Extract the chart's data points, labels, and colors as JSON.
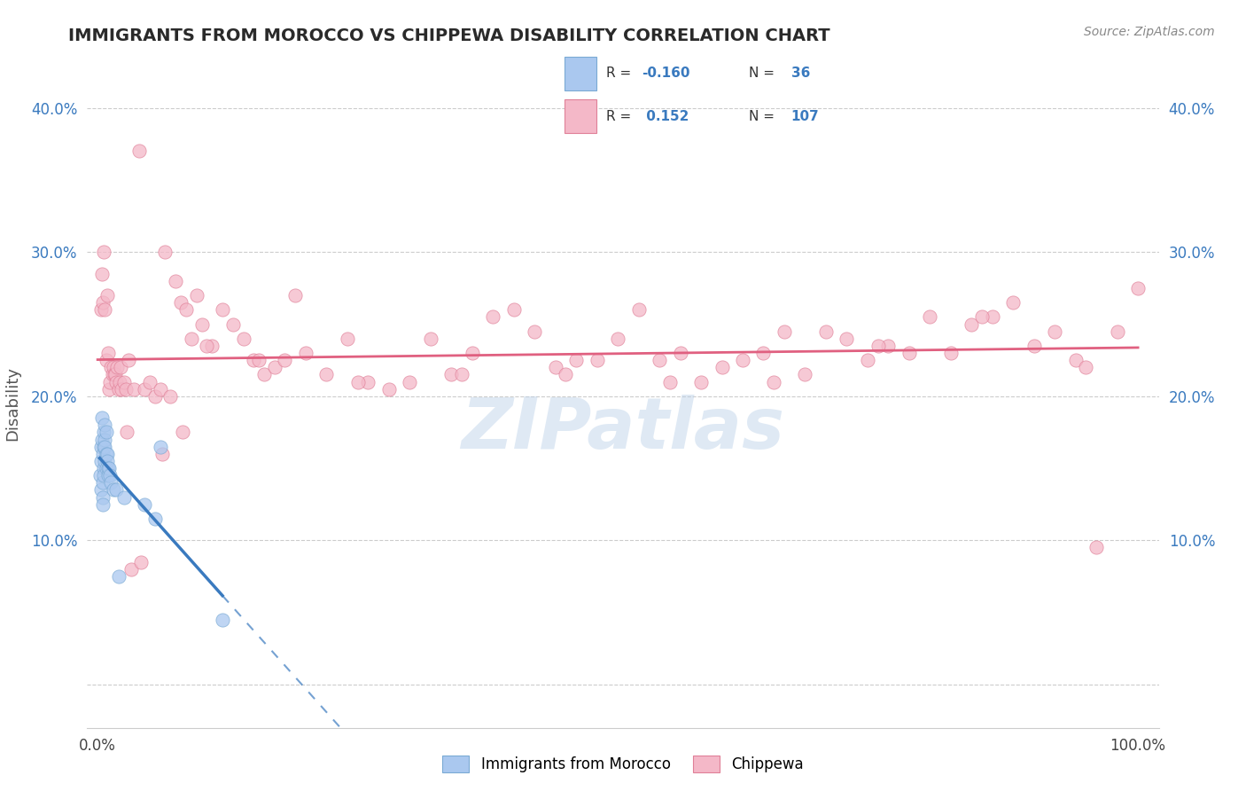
{
  "title": "IMMIGRANTS FROM MOROCCO VS CHIPPEWA DISABILITY CORRELATION CHART",
  "source": "Source: ZipAtlas.com",
  "ylabel": "Disability",
  "watermark": "ZIPatlas",
  "blue_color": "#aac8ef",
  "blue_edge_color": "#7aaad4",
  "pink_color": "#f4b8c8",
  "pink_edge_color": "#e08098",
  "blue_line_color": "#3a7abf",
  "pink_line_color": "#e06080",
  "blue_scatter": [
    [
      0.2,
      14.5
    ],
    [
      0.3,
      16.5
    ],
    [
      0.3,
      15.5
    ],
    [
      0.3,
      13.5
    ],
    [
      0.4,
      18.5
    ],
    [
      0.4,
      17.0
    ],
    [
      0.5,
      16.0
    ],
    [
      0.5,
      14.0
    ],
    [
      0.5,
      13.0
    ],
    [
      0.5,
      12.5
    ],
    [
      0.6,
      17.5
    ],
    [
      0.6,
      16.5
    ],
    [
      0.6,
      15.0
    ],
    [
      0.6,
      14.5
    ],
    [
      0.7,
      18.0
    ],
    [
      0.7,
      17.0
    ],
    [
      0.7,
      16.5
    ],
    [
      0.7,
      15.5
    ],
    [
      0.8,
      17.5
    ],
    [
      0.8,
      16.0
    ],
    [
      0.8,
      15.0
    ],
    [
      0.9,
      16.0
    ],
    [
      0.9,
      15.5
    ],
    [
      1.0,
      15.0
    ],
    [
      1.0,
      14.5
    ],
    [
      1.1,
      15.0
    ],
    [
      1.2,
      14.5
    ],
    [
      1.3,
      14.0
    ],
    [
      1.5,
      13.5
    ],
    [
      1.8,
      13.5
    ],
    [
      2.5,
      13.0
    ],
    [
      4.5,
      12.5
    ],
    [
      5.5,
      11.5
    ],
    [
      6.0,
      16.5
    ],
    [
      2.0,
      7.5
    ],
    [
      12.0,
      4.5
    ]
  ],
  "pink_scatter": [
    [
      0.3,
      26.0
    ],
    [
      0.4,
      28.5
    ],
    [
      0.5,
      26.5
    ],
    [
      0.6,
      30.0
    ],
    [
      0.7,
      26.0
    ],
    [
      0.8,
      22.5
    ],
    [
      0.9,
      27.0
    ],
    [
      1.0,
      23.0
    ],
    [
      1.1,
      20.5
    ],
    [
      1.2,
      21.0
    ],
    [
      1.3,
      22.0
    ],
    [
      1.4,
      21.5
    ],
    [
      1.5,
      22.0
    ],
    [
      1.6,
      21.5
    ],
    [
      1.7,
      21.5
    ],
    [
      1.8,
      21.0
    ],
    [
      1.9,
      22.0
    ],
    [
      2.0,
      20.5
    ],
    [
      2.1,
      21.0
    ],
    [
      2.2,
      22.0
    ],
    [
      2.3,
      20.5
    ],
    [
      2.5,
      21.0
    ],
    [
      2.7,
      20.5
    ],
    [
      3.0,
      22.5
    ],
    [
      3.5,
      20.5
    ],
    [
      4.0,
      37.0
    ],
    [
      4.5,
      20.5
    ],
    [
      5.0,
      21.0
    ],
    [
      5.5,
      20.0
    ],
    [
      6.0,
      20.5
    ],
    [
      6.5,
      30.0
    ],
    [
      7.0,
      20.0
    ],
    [
      7.5,
      28.0
    ],
    [
      8.0,
      26.5
    ],
    [
      8.5,
      26.0
    ],
    [
      9.0,
      24.0
    ],
    [
      9.5,
      27.0
    ],
    [
      10.0,
      25.0
    ],
    [
      11.0,
      23.5
    ],
    [
      12.0,
      26.0
    ],
    [
      13.0,
      25.0
    ],
    [
      14.0,
      24.0
    ],
    [
      15.0,
      22.5
    ],
    [
      16.0,
      21.5
    ],
    [
      17.0,
      22.0
    ],
    [
      18.0,
      22.5
    ],
    [
      19.0,
      27.0
    ],
    [
      20.0,
      23.0
    ],
    [
      22.0,
      21.5
    ],
    [
      24.0,
      24.0
    ],
    [
      26.0,
      21.0
    ],
    [
      28.0,
      20.5
    ],
    [
      30.0,
      21.0
    ],
    [
      32.0,
      24.0
    ],
    [
      34.0,
      21.5
    ],
    [
      36.0,
      23.0
    ],
    [
      38.0,
      25.5
    ],
    [
      40.0,
      26.0
    ],
    [
      42.0,
      24.5
    ],
    [
      44.0,
      22.0
    ],
    [
      46.0,
      22.5
    ],
    [
      48.0,
      22.5
    ],
    [
      50.0,
      24.0
    ],
    [
      52.0,
      26.0
    ],
    [
      54.0,
      22.5
    ],
    [
      56.0,
      23.0
    ],
    [
      58.0,
      21.0
    ],
    [
      60.0,
      22.0
    ],
    [
      62.0,
      22.5
    ],
    [
      64.0,
      23.0
    ],
    [
      66.0,
      24.5
    ],
    [
      68.0,
      21.5
    ],
    [
      70.0,
      24.5
    ],
    [
      72.0,
      24.0
    ],
    [
      74.0,
      22.5
    ],
    [
      76.0,
      23.5
    ],
    [
      78.0,
      23.0
    ],
    [
      80.0,
      25.5
    ],
    [
      82.0,
      23.0
    ],
    [
      84.0,
      25.0
    ],
    [
      86.0,
      25.5
    ],
    [
      88.0,
      26.5
    ],
    [
      90.0,
      23.5
    ],
    [
      92.0,
      24.5
    ],
    [
      94.0,
      22.5
    ],
    [
      96.0,
      9.5
    ],
    [
      98.0,
      24.5
    ],
    [
      100.0,
      27.5
    ],
    [
      55.0,
      21.0
    ],
    [
      65.0,
      21.0
    ],
    [
      75.0,
      23.5
    ],
    [
      85.0,
      25.5
    ],
    [
      95.0,
      22.0
    ],
    [
      45.0,
      21.5
    ],
    [
      35.0,
      21.5
    ],
    [
      25.0,
      21.0
    ],
    [
      15.5,
      22.5
    ],
    [
      10.5,
      23.5
    ],
    [
      8.2,
      17.5
    ],
    [
      3.2,
      8.0
    ],
    [
      4.2,
      8.5
    ],
    [
      6.2,
      16.0
    ],
    [
      2.8,
      17.5
    ]
  ],
  "xlim_left": -1,
  "xlim_right": 102,
  "ylim_bottom": -3,
  "ylim_top": 42,
  "ytick_positions": [
    0,
    10,
    20,
    30,
    40
  ],
  "ytick_labels": [
    "",
    "10.0%",
    "20.0%",
    "30.0%",
    "40.0%"
  ],
  "xtick_positions": [
    0,
    100
  ],
  "xtick_labels": [
    "0.0%",
    "100.0%"
  ],
  "grid_color": "#cccccc",
  "bg_color": "#ffffff"
}
